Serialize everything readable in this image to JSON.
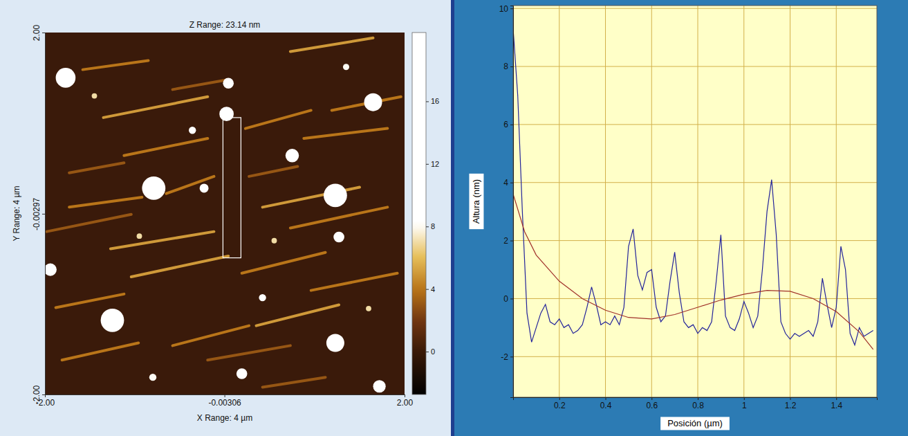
{
  "chart_data": [
    {
      "type": "afm_image",
      "title": "Z Range: 23.14 nm",
      "x_label": "X Range: 4 µm",
      "y_label": "Y Range: 4 µm",
      "xlim": [
        -2,
        2
      ],
      "ylim": [
        -2,
        2
      ],
      "xticks": [
        {
          "value": -2,
          "label": "-2.00"
        },
        -0.00306,
        {
          "value": 2,
          "label": "2.00"
        }
      ],
      "yticks": [
        {
          "value": -2,
          "label": "-2.00"
        },
        -0.00297,
        {
          "value": 2,
          "label": "2.00"
        }
      ],
      "particles": {
        "x": [
          -1.77,
          0.04,
          1.65,
          0.02,
          0.75,
          -0.79,
          -0.23,
          1.23,
          1.27,
          -1.94,
          -1.25,
          1.23,
          0.19,
          1.72,
          0.42,
          -0.36,
          -0.8,
          1.35,
          -1.45,
          0.55,
          -0.95,
          1.6
        ],
        "y": [
          1.5,
          1.44,
          1.23,
          1.1,
          0.64,
          0.28,
          0.28,
          0.2,
          -0.26,
          -0.62,
          -1.18,
          -1.43,
          -1.77,
          -1.91,
          -0.93,
          0.92,
          -1.81,
          1.62,
          1.3,
          -0.3,
          -0.25,
          -1.05
        ],
        "values": [
          18,
          14,
          18,
          18,
          16,
          20,
          12,
          20,
          12,
          16,
          20,
          18,
          14,
          14,
          10,
          10,
          8,
          8,
          7,
          7,
          7,
          7
        ],
        "sizes": [
          0.22,
          0.12,
          0.2,
          0.16,
          0.15,
          0.26,
          0.1,
          0.26,
          0.12,
          0.14,
          0.26,
          0.2,
          0.12,
          0.14,
          0.08,
          0.08,
          0.08,
          0.07,
          0.06,
          0.06,
          0.06,
          0.06
        ]
      },
      "fibers": {
        "x0": [
          -1.58,
          -1.35,
          -1.12,
          -1.73,
          -1.98,
          -1.27,
          -1.88,
          -1.04,
          -0.65,
          0.23,
          0.73,
          1.19,
          0.27,
          0.42,
          0.73,
          0.19,
          0.88,
          0.35,
          -0.58,
          -1.81,
          -0.19,
          0.96,
          -0.58,
          -1.73,
          0.42
        ],
        "y0": [
          1.59,
          1.06,
          0.64,
          0.07,
          -0.2,
          -0.39,
          -1.04,
          -0.7,
          0.22,
          0.94,
          1.79,
          1.14,
          0.41,
          0.07,
          -0.16,
          -0.66,
          0.83,
          -1.24,
          -1.46,
          -1.62,
          -1.62,
          -0.85,
          1.37,
          0.45,
          -1.92
        ],
        "x1": [
          -0.85,
          -0.19,
          -0.19,
          -0.92,
          -1.04,
          -0.12,
          -1.12,
          0.04,
          -0.12,
          0.96,
          1.65,
          1.96,
          0.81,
          1.5,
          1.81,
          1.12,
          1.81,
          1.27,
          0.27,
          -0.96,
          0.73,
          1.92,
          0.04,
          -1.12,
          1.12
        ],
        "y1": [
          1.69,
          1.29,
          0.83,
          0.18,
          -0.01,
          -0.2,
          -0.89,
          -0.47,
          0.41,
          1.14,
          1.94,
          1.29,
          0.52,
          0.29,
          0.07,
          -0.43,
          0.94,
          -1.01,
          -1.24,
          -1.43,
          -1.46,
          -0.66,
          1.48,
          0.56,
          -1.81
        ],
        "values": [
          4,
          5,
          4,
          4,
          3,
          5,
          4,
          5,
          4,
          4,
          5,
          4,
          3,
          5,
          4,
          4,
          4,
          5,
          4,
          4,
          3,
          4,
          3,
          3,
          3
        ]
      },
      "selection": {
        "x": [
          -0.02,
          0.18
        ],
        "y": [
          -0.49,
          1.06
        ]
      },
      "colorbar": {
        "range": [
          -2.74,
          20.4
        ],
        "ticks": [
          0,
          4,
          8,
          12,
          16
        ]
      }
    },
    {
      "type": "line",
      "xlabel": "Posición (µm)",
      "ylabel": "Altura (nm)",
      "xlim": [
        0,
        1.576
      ],
      "ylim": [
        -3.4,
        10.1
      ],
      "xticks": [
        0.2,
        0.4,
        0.6,
        0.8,
        1,
        1.2,
        1.4
      ],
      "yticks": [
        -2,
        0,
        2,
        4,
        6,
        8,
        10
      ],
      "grid": true,
      "series": [
        {
          "color": "#23239a",
          "x": [
            0,
            0.02,
            0.04,
            0.06,
            0.08,
            0.1,
            0.12,
            0.14,
            0.16,
            0.18,
            0.2,
            0.22,
            0.24,
            0.26,
            0.28,
            0.3,
            0.32,
            0.34,
            0.36,
            0.38,
            0.4,
            0.42,
            0.44,
            0.46,
            0.48,
            0.5,
            0.52,
            0.54,
            0.56,
            0.58,
            0.6,
            0.62,
            0.64,
            0.66,
            0.68,
            0.7,
            0.72,
            0.74,
            0.76,
            0.78,
            0.8,
            0.82,
            0.84,
            0.86,
            0.88,
            0.9,
            0.92,
            0.94,
            0.96,
            0.98,
            1,
            1.02,
            1.04,
            1.06,
            1.08,
            1.1,
            1.12,
            1.14,
            1.16,
            1.18,
            1.2,
            1.22,
            1.24,
            1.26,
            1.28,
            1.3,
            1.32,
            1.34,
            1.36,
            1.38,
            1.4,
            1.42,
            1.44,
            1.46,
            1.48,
            1.5,
            1.52,
            1.54,
            1.56
          ],
          "values": [
            9.3,
            7.0,
            3.0,
            -0.5,
            -1.5,
            -1.0,
            -0.5,
            -0.2,
            -0.8,
            -0.9,
            -0.7,
            -1.0,
            -0.9,
            -1.2,
            -1.1,
            -0.9,
            -0.3,
            0.4,
            -0.2,
            -0.9,
            -0.8,
            -0.9,
            -0.6,
            -0.9,
            -0.3,
            1.8,
            2.4,
            0.8,
            0.3,
            0.9,
            1.0,
            -0.3,
            -0.8,
            -0.6,
            0.6,
            1.6,
            0.2,
            -0.8,
            -1.0,
            -0.9,
            -1.2,
            -1.0,
            -1.1,
            -0.8,
            0.6,
            2.2,
            -0.6,
            -1.0,
            -1.1,
            -0.7,
            -0.1,
            -0.5,
            -1.0,
            -0.6,
            1.0,
            3.0,
            4.1,
            2.2,
            -0.8,
            -1.2,
            -1.4,
            -1.2,
            -1.3,
            -1.2,
            -1.1,
            -1.3,
            -0.8,
            0.7,
            -0.2,
            -1.0,
            -0.3,
            1.8,
            1.0,
            -1.2,
            -1.6,
            -1.0,
            -1.3,
            -1.2,
            -1.1
          ]
        },
        {
          "color": "#a0302a",
          "x": [
            0,
            0.05,
            0.1,
            0.2,
            0.3,
            0.4,
            0.5,
            0.6,
            0.7,
            0.8,
            0.9,
            1,
            1.1,
            1.2,
            1.3,
            1.4,
            1.5,
            1.56
          ],
          "values": [
            3.6,
            2.3,
            1.5,
            0.6,
            0.0,
            -0.4,
            -0.65,
            -0.7,
            -0.55,
            -0.3,
            -0.05,
            0.15,
            0.28,
            0.25,
            0.0,
            -0.45,
            -1.15,
            -1.75
          ]
        }
      ]
    }
  ]
}
